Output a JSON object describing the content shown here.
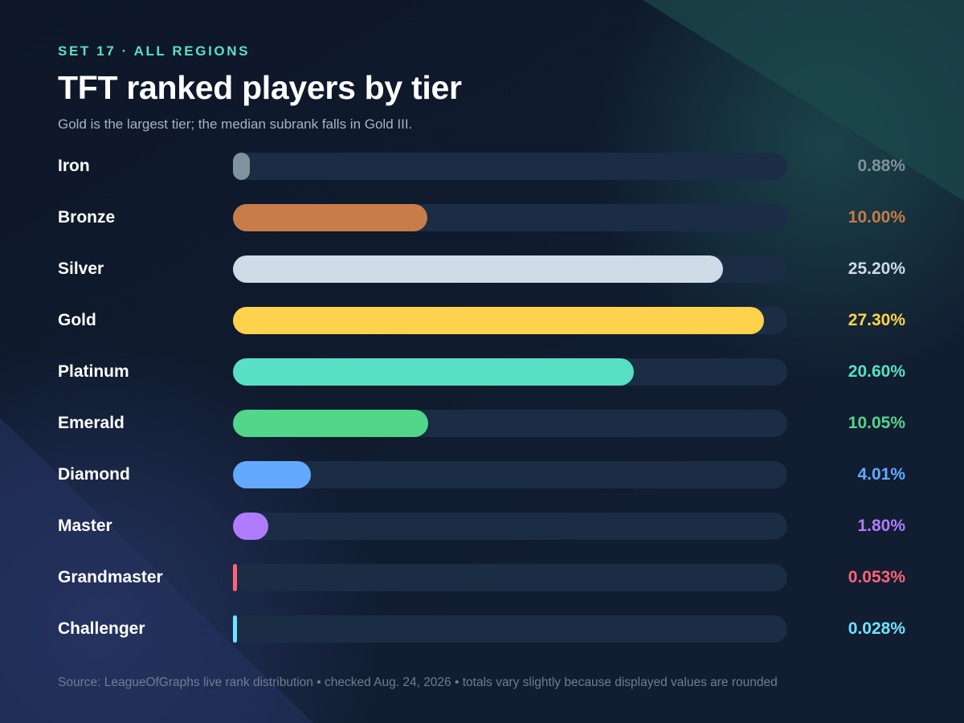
{
  "eyebrow": "SET 17 · ALL REGIONS",
  "title": "TFT ranked players by tier",
  "subtitle": "Gold is the largest tier; the median subrank falls in Gold III.",
  "footer": "Source: LeagueOfGraphs live rank distribution • checked Aug. 24, 2026 • totals vary slightly because displayed values are rounded",
  "colors": {
    "background": "#111d31",
    "track": "#1a2d45",
    "eyebrow": "#5ee0c3"
  },
  "chart_data": {
    "type": "bar",
    "orientation": "horizontal",
    "xlim": [
      0,
      28.5
    ],
    "grid": false,
    "legend": "none",
    "categories": [
      "Iron",
      "Bronze",
      "Silver",
      "Gold",
      "Platinum",
      "Emerald",
      "Diamond",
      "Master",
      "Grandmaster",
      "Challenger"
    ],
    "values": [
      0.88,
      10.0,
      25.2,
      27.3,
      20.6,
      10.05,
      4.01,
      1.8,
      0.053,
      0.028
    ],
    "value_labels": [
      "0.88%",
      "10.00%",
      "25.20%",
      "27.30%",
      "20.60%",
      "10.05%",
      "4.01%",
      "1.80%",
      "0.053%",
      "0.028%"
    ],
    "colors": [
      "#7f929d",
      "#c77c4a",
      "#cfdbe7",
      "#ffd24d",
      "#58e0c4",
      "#52d68a",
      "#63a9ff",
      "#b07cff",
      "#ff6378",
      "#6fe3ff"
    ]
  }
}
